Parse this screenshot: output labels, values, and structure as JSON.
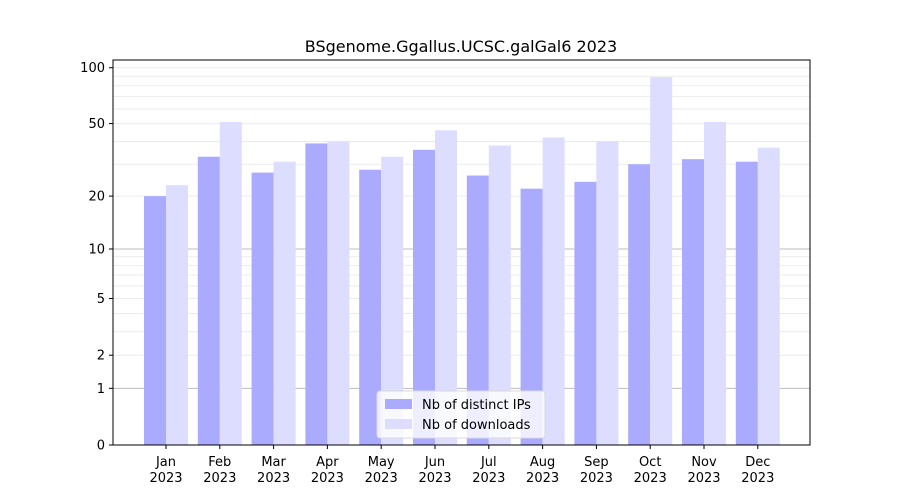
{
  "chart_data": {
    "type": "bar",
    "title": "BSgenome.Ggallus.UCSC.galGal6 2023",
    "xlabel": "",
    "ylabel": "",
    "categories": [
      [
        "Jan",
        "2023"
      ],
      [
        "Feb",
        "2023"
      ],
      [
        "Mar",
        "2023"
      ],
      [
        "Apr",
        "2023"
      ],
      [
        "May",
        "2023"
      ],
      [
        "Jun",
        "2023"
      ],
      [
        "Jul",
        "2023"
      ],
      [
        "Aug",
        "2023"
      ],
      [
        "Sep",
        "2023"
      ],
      [
        "Oct",
        "2023"
      ],
      [
        "Nov",
        "2023"
      ],
      [
        "Dec",
        "2023"
      ]
    ],
    "y_scale": "log(1 + y)",
    "y_ticks": [
      0,
      1,
      2,
      5,
      10,
      20,
      50,
      100
    ],
    "ylim": [
      0,
      110
    ],
    "grid": true,
    "legend_position": "bottom-center",
    "series": [
      {
        "name": "Nb of distinct IPs",
        "color": "#aaaaff",
        "values": [
          20,
          33,
          27,
          39,
          28,
          36,
          26,
          22,
          24,
          30,
          32,
          31
        ]
      },
      {
        "name": "Nb of downloads",
        "color": "#ddddff",
        "values": [
          23,
          51,
          31,
          40,
          33,
          46,
          38,
          42,
          40,
          89,
          51,
          37
        ]
      }
    ]
  }
}
